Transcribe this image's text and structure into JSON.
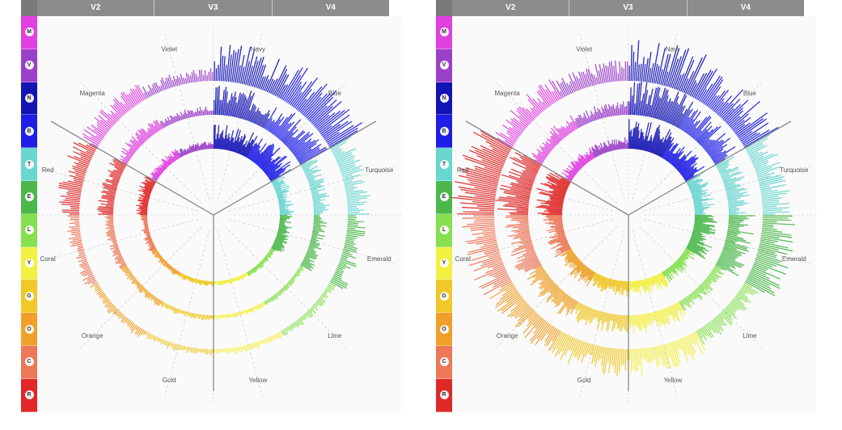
{
  "header": {
    "columns": [
      "V2",
      "V3",
      "V4"
    ]
  },
  "sidebar": {
    "items": [
      {
        "code": "M",
        "color": "#e040e0"
      },
      {
        "code": "V",
        "color": "#9a40c8"
      },
      {
        "code": "N",
        "color": "#1414b4"
      },
      {
        "code": "B",
        "color": "#1e1ee6"
      },
      {
        "code": "T",
        "color": "#6ad6d0"
      },
      {
        "code": "E",
        "color": "#4cb84c"
      },
      {
        "code": "L",
        "color": "#86e050"
      },
      {
        "code": "Y",
        "color": "#f2f040"
      },
      {
        "code": "G",
        "color": "#f0c828"
      },
      {
        "code": "O",
        "color": "#f0a028"
      },
      {
        "code": "C",
        "color": "#ec7858"
      },
      {
        "code": "R",
        "color": "#e02828"
      }
    ]
  },
  "chart_data": [
    {
      "type": "radial-bar",
      "panel": "left",
      "ring_labels": [
        "V2",
        "V3",
        "V4"
      ],
      "categories": [
        "Navy",
        "Blue",
        "Turquoise",
        "Emerald",
        "Lime",
        "Yellow",
        "Gold",
        "Orange",
        "Coral",
        "Red",
        "Magenta",
        "Violet"
      ],
      "category_colors": [
        "#1414b4",
        "#1e1ee6",
        "#6ad6d0",
        "#4cb84c",
        "#86e050",
        "#f2f040",
        "#f0c828",
        "#f0a028",
        "#ec7858",
        "#e02828",
        "#e040e0",
        "#9a40c8"
      ],
      "series": [
        {
          "values": [
            0.62,
            0.7,
            0.34,
            0.3,
            0.1,
            0.08,
            0.1,
            0.12,
            0.16,
            0.3,
            0.22,
            0.16
          ]
        },
        {
          "values": [
            0.7,
            0.76,
            0.4,
            0.3,
            0.1,
            0.08,
            0.1,
            0.14,
            0.18,
            0.36,
            0.3,
            0.18
          ]
        },
        {
          "values": [
            0.82,
            0.86,
            0.48,
            0.36,
            0.14,
            0.1,
            0.12,
            0.18,
            0.24,
            0.48,
            0.42,
            0.24
          ]
        }
      ],
      "dividers": [
        "Red/Magenta",
        "Blue/Turquoise",
        "Yellow/Gold"
      ]
    },
    {
      "type": "radial-bar",
      "panel": "right",
      "ring_labels": [
        "V2",
        "V3",
        "V4"
      ],
      "categories": [
        "Navy",
        "Blue",
        "Turquoise",
        "Emerald",
        "Lime",
        "Yellow",
        "Gold",
        "Orange",
        "Coral",
        "Red",
        "Magenta",
        "Violet"
      ],
      "category_colors": [
        "#1414b4",
        "#1e1ee6",
        "#6ad6d0",
        "#4cb84c",
        "#86e050",
        "#f2f040",
        "#f0c828",
        "#f0a028",
        "#ec7858",
        "#e02828",
        "#e040e0",
        "#9a40c8"
      ],
      "series": [
        {
          "values": [
            0.78,
            0.62,
            0.5,
            0.56,
            0.3,
            0.38,
            0.36,
            0.42,
            0.46,
            0.72,
            0.3,
            0.26
          ]
        },
        {
          "values": [
            0.8,
            0.66,
            0.52,
            0.62,
            0.28,
            0.44,
            0.42,
            0.5,
            0.58,
            0.82,
            0.36,
            0.3
          ]
        },
        {
          "values": [
            0.92,
            0.84,
            0.6,
            0.72,
            0.34,
            0.56,
            0.56,
            0.6,
            0.7,
            0.9,
            0.48,
            0.42
          ]
        }
      ],
      "dividers": [
        "Red/Magenta",
        "Blue/Turquoise",
        "Yellow/Gold"
      ]
    }
  ]
}
